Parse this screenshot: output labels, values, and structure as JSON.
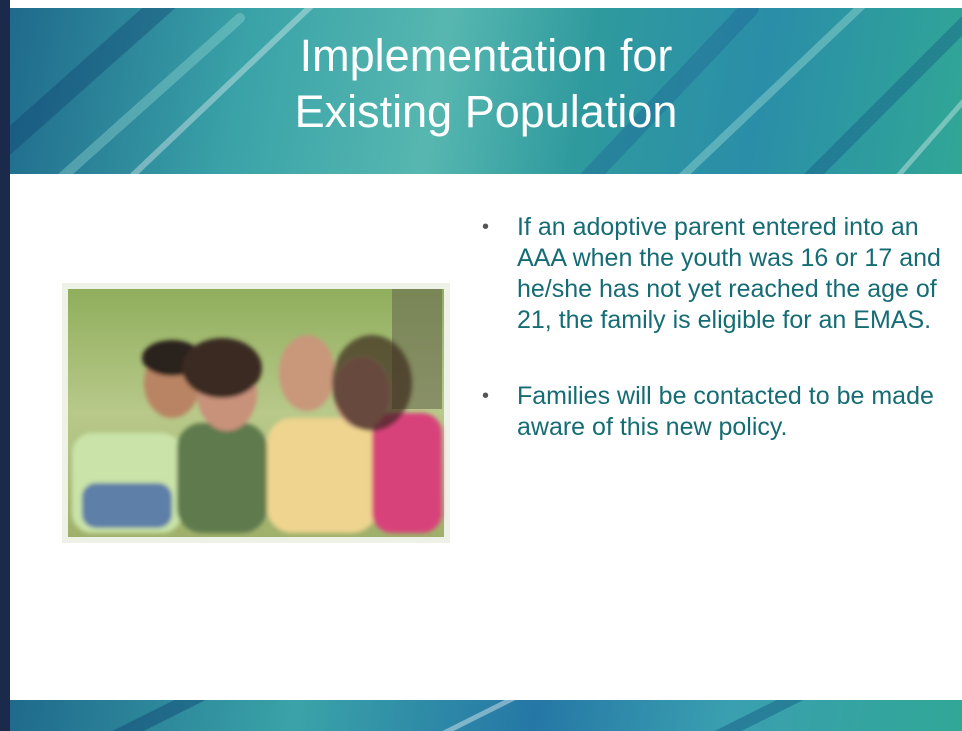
{
  "slide": {
    "title_lines": [
      "Implementation for",
      "Existing Population"
    ],
    "bullets": [
      "If an adoptive parent entered into an AAA when the youth was 16 or 17 and he/she has not yet reached the age of 21, the family is eligible for an EMAS.",
      "Families will be contacted to be made aware of this new policy."
    ]
  }
}
